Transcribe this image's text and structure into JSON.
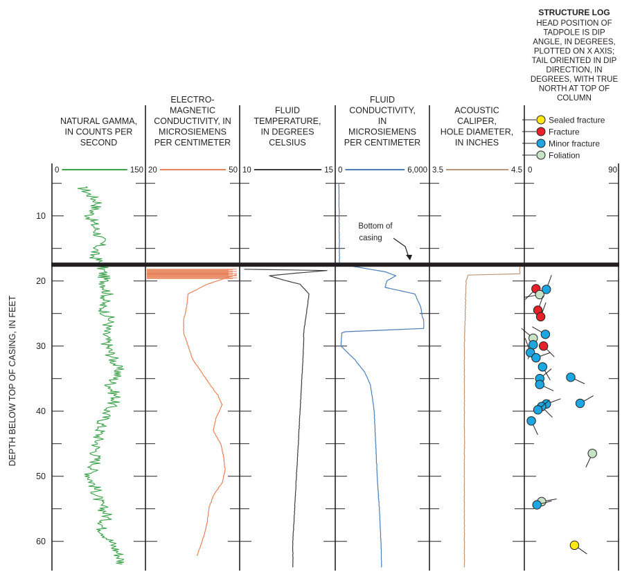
{
  "chart_data": {
    "type": "line",
    "ylabel": "DEPTH BELOW TOP OF CASING, IN FEET",
    "ylim": [
      4.5,
      64.5
    ],
    "yticks": [
      10,
      20,
      30,
      40,
      50,
      60
    ],
    "y_inverted": true,
    "casing_bottom_depth": 17.5,
    "casing_annotation": "Bottom of\ncasing",
    "tracks": [
      {
        "name": "NATURAL GAMMA,\nIN COUNTS PER\nSECOND",
        "scale_min": "0",
        "scale_max": "150",
        "xlim": [
          0,
          150
        ],
        "color": "#3aa04a",
        "series": {
          "depth": [
            5.5,
            8,
            10,
            12,
            14,
            16,
            17.5,
            20,
            22,
            24,
            26,
            28,
            30,
            32,
            34,
            36,
            38,
            40,
            42,
            44,
            46,
            48,
            50,
            52,
            54,
            56,
            58,
            60,
            62,
            63.5
          ],
          "values": [
            45,
            75,
            60,
            70,
            80,
            65,
            80,
            85,
            90,
            80,
            95,
            85,
            90,
            100,
            110,
            95,
            105,
            90,
            80,
            75,
            70,
            70,
            60,
            70,
            75,
            90,
            80,
            95,
            110,
            115
          ]
        }
      },
      {
        "name": "ELECTRO-\nMAGNETIC\nCONDUCTIVITY, IN\nMICROSIEMENS\nPER CENTIMETER",
        "scale_min": "20",
        "scale_max": "50",
        "xlim": [
          20,
          50
        ],
        "color": "#e8825a",
        "series": {
          "depth": [
            19,
            20.5,
            22,
            24,
            26,
            28,
            30,
            32,
            34,
            36,
            37.5,
            39,
            41,
            43,
            45,
            47,
            49,
            51,
            53,
            55,
            57,
            59,
            61,
            62.2
          ],
          "values": [
            50,
            40,
            33.5,
            33,
            32,
            32,
            33.5,
            35,
            38,
            41,
            43.5,
            45,
            43,
            42,
            44.5,
            45.5,
            46,
            45,
            42,
            40.5,
            40,
            39,
            37.5,
            36.5
          ]
        }
      },
      {
        "name": "FLUID\nTEMPERATURE,\nIN DEGREES\nCELSIUS",
        "scale_min": "10",
        "scale_max": "15",
        "xlim": [
          10,
          15
        ],
        "color": "#3c3c3c",
        "series": {
          "depth": [
            18.2,
            18.4,
            18.8,
            19.2,
            19.8,
            20.5,
            22,
            24,
            26,
            28,
            30,
            35,
            40,
            45,
            50,
            55,
            60,
            64
          ],
          "values": [
            10.1,
            14.7,
            13,
            11.5,
            12.2,
            13.2,
            13.7,
            13.6,
            13.5,
            13.4,
            13.4,
            13.3,
            13.2,
            13.1,
            13,
            12.9,
            12.8,
            12.8
          ]
        }
      },
      {
        "name": "FLUID\nCONDUCTIVITY,\nIN\nMICROSIEMENS\nPER CENTIMETER",
        "scale_min": "0",
        "scale_max": "6,000",
        "xlim": [
          0,
          6000
        ],
        "color": "#4a7ebb",
        "series": {
          "depth": [
            5,
            17.4,
            18.6,
            19.2,
            20,
            21,
            22,
            24,
            25.5,
            26,
            27.3,
            27.8,
            28,
            30,
            32,
            34,
            36,
            40,
            45,
            50,
            55,
            60,
            64
          ],
          "values": [
            60,
            100,
            3200,
            3900,
            3300,
            3200,
            5200,
            5600,
            5700,
            5800,
            5800,
            500,
            250,
            200,
            1100,
            1800,
            2200,
            2450,
            2550,
            2650,
            2800,
            2900,
            2950
          ]
        }
      },
      {
        "name": "ACOUSTIC\nCALIPER,\nHOLE DIAMETER,\nIN INCHES",
        "scale_min": "3.5",
        "scale_max": "4.5",
        "xlim": [
          3.5,
          4.5
        ],
        "color": "#b8967a",
        "series": {
          "depth": [
            17.8,
            18.9,
            19.1,
            20,
            25,
            30,
            35,
            40,
            45,
            50,
            55,
            60,
            64
          ],
          "values": [
            4.48,
            4.48,
            3.9,
            3.88,
            3.87,
            3.86,
            3.86,
            3.86,
            3.86,
            3.86,
            3.86,
            3.86,
            3.86
          ]
        }
      }
    ],
    "structure_log": {
      "title": "STRUCTURE LOG",
      "caption": "HEAD POSITION OF\nTADPOLE IS DIP\nANGLE, IN DEGREES,\nPLOTTED ON X AXIS;\nTAIL ORIENTED IN DIP\nDIRECTION, IN\nDEGREES, WITH TRUE\nNORTH AT TOP OF\nCOLUMN",
      "scale_min": "0",
      "scale_max": "90",
      "xlim": [
        0,
        90
      ],
      "legend": [
        {
          "label": "Sealed fracture",
          "color": "#ffe814"
        },
        {
          "label": "Fracture",
          "color": "#e8202a"
        },
        {
          "label": "Minor fracture",
          "color": "#1ea6e0"
        },
        {
          "label": "Foliation",
          "color": "#c6e3c6"
        }
      ],
      "tadpoles": [
        {
          "depth": 21.2,
          "dip": 8,
          "dir": 225,
          "kind": "Fracture"
        },
        {
          "depth": 21.3,
          "dip": 19,
          "dir": 20,
          "kind": "Minor fracture"
        },
        {
          "depth": 22.1,
          "dip": 12,
          "dir": 260,
          "kind": "Foliation"
        },
        {
          "depth": 24.5,
          "dip": 10,
          "dir": 20,
          "kind": "Fracture"
        },
        {
          "depth": 25.5,
          "dip": 13,
          "dir": 20,
          "kind": "Fracture"
        },
        {
          "depth": 28.2,
          "dip": 18,
          "dir": 300,
          "kind": "Minor fracture"
        },
        {
          "depth": 28.8,
          "dip": 5,
          "dir": 310,
          "kind": "Foliation"
        },
        {
          "depth": 29.8,
          "dip": 5,
          "dir": 200,
          "kind": "Minor fracture"
        },
        {
          "depth": 30.0,
          "dip": 16,
          "dir": 135,
          "kind": "Fracture"
        },
        {
          "depth": 31.0,
          "dip": 2,
          "dir": 340,
          "kind": "Minor fracture"
        },
        {
          "depth": 31.8,
          "dip": 8,
          "dir": 70,
          "kind": "Minor fracture"
        },
        {
          "depth": 33.2,
          "dip": 15,
          "dir": 150,
          "kind": "Minor fracture"
        },
        {
          "depth": 34.8,
          "dip": 45,
          "dir": 115,
          "kind": "Minor fracture"
        },
        {
          "depth": 35.0,
          "dip": 12,
          "dir": 50,
          "kind": "Minor fracture"
        },
        {
          "depth": 35.9,
          "dip": 12,
          "dir": 115,
          "kind": "Minor fracture"
        },
        {
          "depth": 38.8,
          "dip": 55,
          "dir": 60,
          "kind": "Minor fracture"
        },
        {
          "depth": 38.9,
          "dip": 19,
          "dir": 70,
          "kind": "Minor fracture"
        },
        {
          "depth": 39.3,
          "dip": 14,
          "dir": 135,
          "kind": "Minor fracture"
        },
        {
          "depth": 39.8,
          "dip": 10,
          "dir": 50,
          "kind": "Minor fracture"
        },
        {
          "depth": 41.5,
          "dip": 3,
          "dir": 155,
          "kind": "Minor fracture"
        },
        {
          "depth": 46.5,
          "dip": 68,
          "dir": 205,
          "kind": "Foliation"
        },
        {
          "depth": 53.9,
          "dip": 14,
          "dir": 80,
          "kind": "Foliation"
        },
        {
          "depth": 54.4,
          "dip": 9,
          "dir": 75,
          "kind": "Minor fracture"
        },
        {
          "depth": 60.6,
          "dip": 49,
          "dir": 125,
          "kind": "Sealed fracture"
        }
      ]
    }
  }
}
